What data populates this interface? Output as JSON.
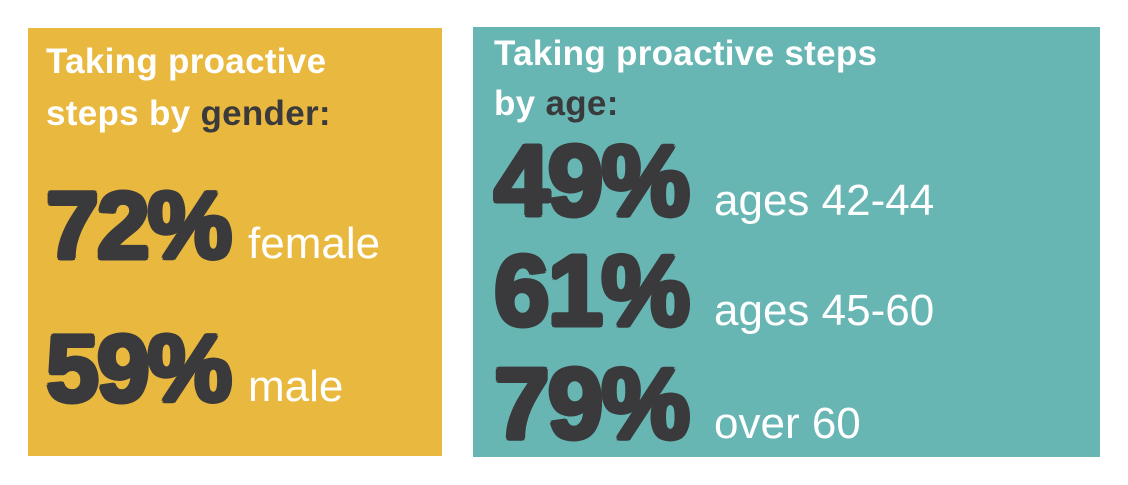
{
  "colors": {
    "yellow": "#e9b83f",
    "teal": "#67b6b3",
    "dark": "#3a3a3c",
    "light": "#ffffff"
  },
  "gender_panel": {
    "title_line1": "Taking proactive",
    "title_line2_light": "steps by ",
    "title_line2_dark": "gender:",
    "stats": [
      {
        "value": "72%",
        "label": "female"
      },
      {
        "value": "59%",
        "label": "male"
      }
    ]
  },
  "age_panel": {
    "title_line1": "Taking proactive steps",
    "title_line2_light": "by ",
    "title_line2_dark": "age:",
    "stats": [
      {
        "value": "49%",
        "label": "ages 42-44"
      },
      {
        "value": "61%",
        "label": "ages 45-60"
      },
      {
        "value": "79%",
        "label": "over 60"
      }
    ]
  },
  "chart_data": [
    {
      "type": "table",
      "title": "Taking proactive steps by gender",
      "categories": [
        "female",
        "male"
      ],
      "values": [
        72,
        59
      ],
      "unit": "%"
    },
    {
      "type": "table",
      "title": "Taking proactive steps by age",
      "categories": [
        "ages 42-44",
        "ages 45-60",
        "over 60"
      ],
      "values": [
        49,
        61,
        79
      ],
      "unit": "%"
    }
  ]
}
